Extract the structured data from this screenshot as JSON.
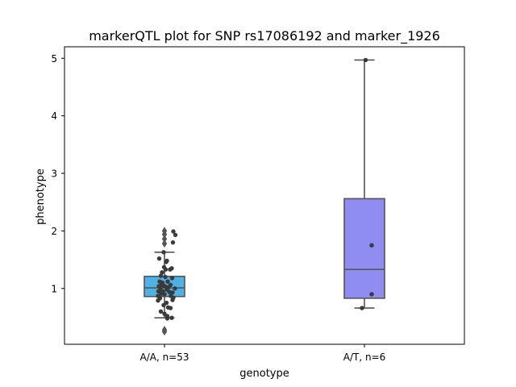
{
  "chart_data": {
    "type": "box",
    "title": "markerQTL plot for SNP rs17086192 and marker_1926",
    "xlabel": "genotype",
    "ylabel": "phenotype",
    "ylim": [
      0.03,
      5.2
    ],
    "yticks": [
      "1",
      "2",
      "3",
      "4",
      "5"
    ],
    "categories": [
      "A/A, n=53",
      "A/T, n=6"
    ],
    "colors": {
      "box_aa": "#4fb2e6",
      "box_at": "#8f8cf2",
      "edge": "#555555",
      "point": "#3a3a3a"
    },
    "boxes": [
      {
        "category": "A/A, n=53",
        "q1": 0.86,
        "median": 1.01,
        "q3": 1.21,
        "whisker_low": 0.49,
        "whisker_high": 1.63,
        "outliers": [
          1.78,
          1.86,
          1.94,
          2.0,
          0.25,
          0.28
        ]
      },
      {
        "category": "A/T, n=6",
        "q1": 0.83,
        "median": 1.33,
        "q3": 2.56,
        "whisker_low": 0.66,
        "whisker_high": 4.97,
        "outliers": []
      }
    ],
    "points": [
      {
        "category": "A/A, n=53",
        "x": -0.13,
        "y": 1.52
      },
      {
        "category": "A/A, n=53",
        "x": -0.02,
        "y": 1.63
      },
      {
        "category": "A/A, n=53",
        "x": 0.06,
        "y": 1.48
      },
      {
        "category": "A/A, n=53",
        "x": 0.04,
        "y": 1.46
      },
      {
        "category": "A/A, n=53",
        "x": 0.22,
        "y": 1.99
      },
      {
        "category": "A/A, n=53",
        "x": 0.27,
        "y": 1.93
      },
      {
        "category": "A/A, n=53",
        "x": 0.21,
        "y": 1.8
      },
      {
        "category": "A/A, n=53",
        "x": 0.14,
        "y": 1.33
      },
      {
        "category": "A/A, n=53",
        "x": 0.18,
        "y": 1.35
      },
      {
        "category": "A/A, n=53",
        "x": -0.01,
        "y": 1.37
      },
      {
        "category": "A/A, n=53",
        "x": 0.03,
        "y": 1.33
      },
      {
        "category": "A/A, n=53",
        "x": -0.06,
        "y": 1.28
      },
      {
        "category": "A/A, n=53",
        "x": -0.09,
        "y": 1.22
      },
      {
        "category": "A/A, n=53",
        "x": 0.02,
        "y": 1.2
      },
      {
        "category": "A/A, n=53",
        "x": 0.19,
        "y": 1.18
      },
      {
        "category": "A/A, n=53",
        "x": -0.12,
        "y": 1.12
      },
      {
        "category": "A/A, n=53",
        "x": -0.05,
        "y": 1.1
      },
      {
        "category": "A/A, n=53",
        "x": 0.08,
        "y": 1.12
      },
      {
        "category": "A/A, n=53",
        "x": 0.15,
        "y": 1.06
      },
      {
        "category": "A/A, n=53",
        "x": -0.14,
        "y": 1.04
      },
      {
        "category": "A/A, n=53",
        "x": -0.07,
        "y": 1.06
      },
      {
        "category": "A/A, n=53",
        "x": -0.02,
        "y": 1.05
      },
      {
        "category": "A/A, n=53",
        "x": 0.03,
        "y": 1.03
      },
      {
        "category": "A/A, n=53",
        "x": 0.1,
        "y": 1.02
      },
      {
        "category": "A/A, n=53",
        "x": 0.26,
        "y": 1.0
      },
      {
        "category": "A/A, n=53",
        "x": -0.1,
        "y": 0.99
      },
      {
        "category": "A/A, n=53",
        "x": 0.06,
        "y": 0.98
      },
      {
        "category": "A/A, n=53",
        "x": -0.15,
        "y": 0.95
      },
      {
        "category": "A/A, n=53",
        "x": -0.04,
        "y": 0.95
      },
      {
        "category": "A/A, n=53",
        "x": 0.12,
        "y": 0.94
      },
      {
        "category": "A/A, n=53",
        "x": 0.2,
        "y": 0.93
      },
      {
        "category": "A/A, n=53",
        "x": -0.08,
        "y": 0.91
      },
      {
        "category": "A/A, n=53",
        "x": 0.0,
        "y": 0.9
      },
      {
        "category": "A/A, n=53",
        "x": -0.16,
        "y": 0.87
      },
      {
        "category": "A/A, n=53",
        "x": 0.16,
        "y": 0.87
      },
      {
        "category": "A/A, n=53",
        "x": 0.22,
        "y": 0.84
      },
      {
        "category": "A/A, n=53",
        "x": -0.11,
        "y": 0.83
      },
      {
        "category": "A/A, n=53",
        "x": 0.2,
        "y": 0.8
      },
      {
        "category": "A/A, n=53",
        "x": -0.16,
        "y": 0.79
      },
      {
        "category": "A/A, n=53",
        "x": 0.05,
        "y": 0.75
      },
      {
        "category": "A/A, n=53",
        "x": -0.02,
        "y": 0.71
      },
      {
        "category": "A/A, n=53",
        "x": 0.09,
        "y": 0.67
      },
      {
        "category": "A/A, n=53",
        "x": 0.15,
        "y": 0.66
      },
      {
        "category": "A/A, n=53",
        "x": -0.09,
        "y": 0.6
      },
      {
        "category": "A/A, n=53",
        "x": 0.0,
        "y": 0.56
      },
      {
        "category": "A/A, n=53",
        "x": 0.07,
        "y": 0.52
      },
      {
        "category": "A/A, n=53",
        "x": 0.18,
        "y": 0.49
      },
      {
        "category": "A/A, n=53",
        "x": 0.07,
        "y": 0.48
      },
      {
        "category": "A/T, n=6",
        "x": 0.03,
        "y": 4.97
      },
      {
        "category": "A/T, n=6",
        "x": 0.18,
        "y": 1.75
      },
      {
        "category": "A/T, n=6",
        "x": 0.18,
        "y": 0.9
      },
      {
        "category": "A/T, n=6",
        "x": -0.06,
        "y": 0.66
      }
    ]
  }
}
